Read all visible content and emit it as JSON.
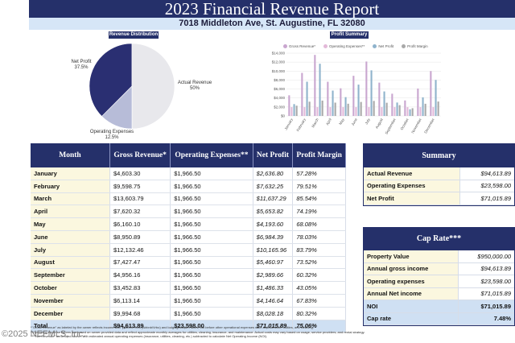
{
  "title": "2023 Financial Revenue Report",
  "address": "7018 Middleton Ave, St. Augustine, FL 32080",
  "revenue_distribution": {
    "heading": "Revenue Distribution",
    "slices": [
      {
        "label": "Net Profit",
        "pct": "37.5%",
        "value": 37.5,
        "color": "#2a2f72"
      },
      {
        "label": "Actual Revenue",
        "pct": "50%",
        "value": 50,
        "color": "#e8e8ec"
      },
      {
        "label": "Operating Expenses",
        "pct": "12.5%",
        "value": 12.5,
        "color": "#b7bcd8"
      }
    ]
  },
  "chart_data": {
    "type": "bar",
    "title": "Profit Summary",
    "categories": [
      "January",
      "February",
      "March",
      "April",
      "May",
      "June",
      "July",
      "August",
      "September",
      "October",
      "November",
      "December"
    ],
    "series": [
      {
        "name": "Gross Revenue*",
        "color": "#c9a6cf",
        "values": [
          4603.3,
          9598.75,
          13603.79,
          7620.32,
          6160.1,
          8950.89,
          12132.46,
          7427.47,
          4956.16,
          3452.83,
          6113.14,
          9994.68
        ]
      },
      {
        "name": "Operating Expenses**",
        "color": "#e3b9d9",
        "values": [
          1966.5,
          1966.5,
          1966.5,
          1966.5,
          1966.5,
          1966.5,
          1966.5,
          1966.5,
          1966.5,
          1966.5,
          1966.5,
          1966.5
        ]
      },
      {
        "name": "Net Profit",
        "color": "#8fb3cc",
        "values": [
          2636.8,
          7632.25,
          11637.29,
          5653.82,
          4193.6,
          6984.39,
          10165.96,
          5460.97,
          2989.66,
          1486.33,
          4146.64,
          8028.18
        ]
      },
      {
        "name": "Profit Margin",
        "color": "#a9a9a9",
        "values": [
          57.28,
          79.51,
          85.54,
          74.19,
          68.08,
          78.03,
          83.79,
          73.52,
          60.32,
          43.05,
          67.83,
          80.32
        ]
      }
    ],
    "yticks": [
      "$14,000",
      "$12,000",
      "$10,000",
      "$8,000",
      "$6,000",
      "$4,000",
      "$2,000",
      "$0"
    ],
    "ylim": [
      0,
      14000
    ]
  },
  "main_table": {
    "headers": [
      "Month",
      "Gross Revenue*",
      "Operating Expenses**",
      "Net Profit",
      "Profit Margin"
    ],
    "rows": [
      [
        "January",
        "$4,603.30",
        "$1,966.50",
        "$2,636.80",
        "57.28%"
      ],
      [
        "February",
        "$9,598.75",
        "$1,966.50",
        "$7,632.25",
        "79.51%"
      ],
      [
        "March",
        "$13,603.79",
        "$1,966.50",
        "$11,637.29",
        "85.54%"
      ],
      [
        "April",
        "$7,620.32",
        "$1,966.50",
        "$5,653.82",
        "74.19%"
      ],
      [
        "May",
        "$6,160.10",
        "$1,966.50",
        "$4,193.60",
        "68.08%"
      ],
      [
        "June",
        "$8,950.89",
        "$1,966.50",
        "$6,984.39",
        "78.03%"
      ],
      [
        "July",
        "$12,132.46",
        "$1,966.50",
        "$10,165.96",
        "83.79%"
      ],
      [
        "August",
        "$7,427.47",
        "$1,966.50",
        "$5,460.97",
        "73.52%"
      ],
      [
        "September",
        "$4,956.16",
        "$1,966.50",
        "$2,989.66",
        "60.32%"
      ],
      [
        "October",
        "$3,452.83",
        "$1,966.50",
        "$1,486.33",
        "43.05%"
      ],
      [
        "November",
        "$6,113.14",
        "$1,966.50",
        "$4,146.64",
        "67.83%"
      ],
      [
        "December",
        "$9,994.68",
        "$1,966.50",
        "$8,028.18",
        "80.32%"
      ]
    ],
    "total": [
      "Total",
      "$94,613.89",
      "$23,598.00",
      "$71,015.89",
      "75.06%"
    ]
  },
  "summary": {
    "heading": "Summary",
    "rows": [
      [
        "Actual Revenue",
        "$94,613.89"
      ],
      [
        "Operating Expenses",
        "$23,598.00"
      ],
      [
        "Net Profit",
        "$71,015.89"
      ]
    ]
  },
  "cap_rate": {
    "heading": "Cap Rate***",
    "rows": [
      [
        "Property Value",
        "$950,000.00"
      ],
      [
        "Annual gross income",
        "$94,613.89"
      ],
      [
        "Operating expenses",
        "$23,598.00"
      ],
      [
        "Annual Net income",
        "$71,015.89"
      ],
      [
        "NOI",
        "$71,015.89"
      ],
      [
        "Cap rate",
        "7.48%"
      ]
    ]
  },
  "footnotes": [
    "*\"Gross Revenue\" as labeled by the owner reflects income after platform fees (Airbnb/Vrbo) and lodging/tourism taxes, but before other operational expenses such as insurance, utilities, and cleaning.",
    "**Operating expense figures are based on owner-provided data and reflect approximate monthly averages for utilities, cleaning, insurance, and maintenance. Actual costs may vary based on usage, service providers, and rental strategy.",
    "***\"Net Revenue\" as defined above, with estimated annual operating expenses (insurance, utilities, cleaning, etc.) subtracted to calculate Net Operating Income (NOI)."
  ],
  "watermark": "©2025 NEFMLS, Inc."
}
